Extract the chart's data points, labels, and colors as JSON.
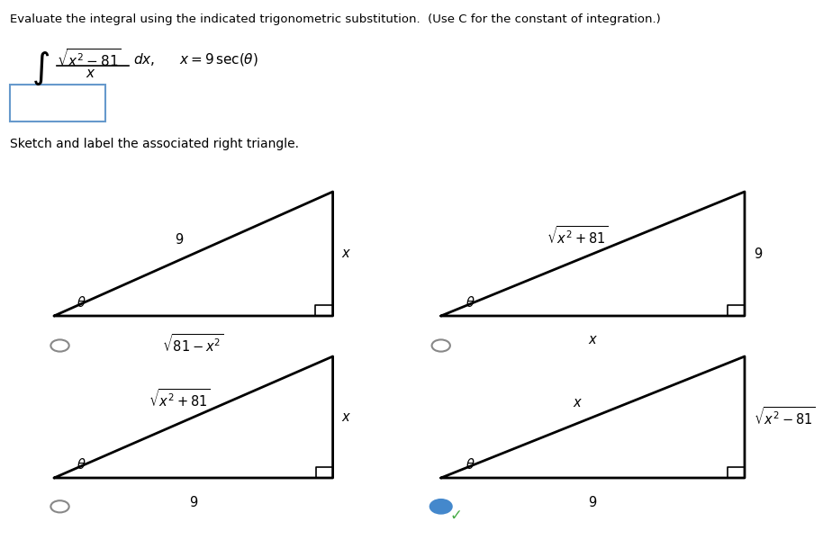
{
  "bg_color": "#ffffff",
  "header_text": "Evaluate the integral using the indicated trigonometric substitution.  (Use C for the constant of integration.)",
  "sketch_label": "Sketch and label the associated right triangle.",
  "tri1": {
    "hyp": "9",
    "base": "81 - x^2",
    "vert": "x",
    "selected": false
  },
  "tri2": {
    "hyp": "x^2 + 81",
    "base": "x",
    "vert": "9",
    "selected": false
  },
  "tri3": {
    "hyp": "x^2 + 81",
    "base": "9",
    "vert": "x",
    "selected": false
  },
  "tri4": {
    "hyp": "x",
    "base": "9",
    "vert": "x^2 - 81",
    "selected": true
  },
  "radio_color_empty": "#888888",
  "radio_color_filled": "#4488cc",
  "check_color": "#44aa44",
  "line_color": "#000000",
  "box_color": "#6699cc",
  "integral_color": "#000000",
  "subst_color": "#000000"
}
